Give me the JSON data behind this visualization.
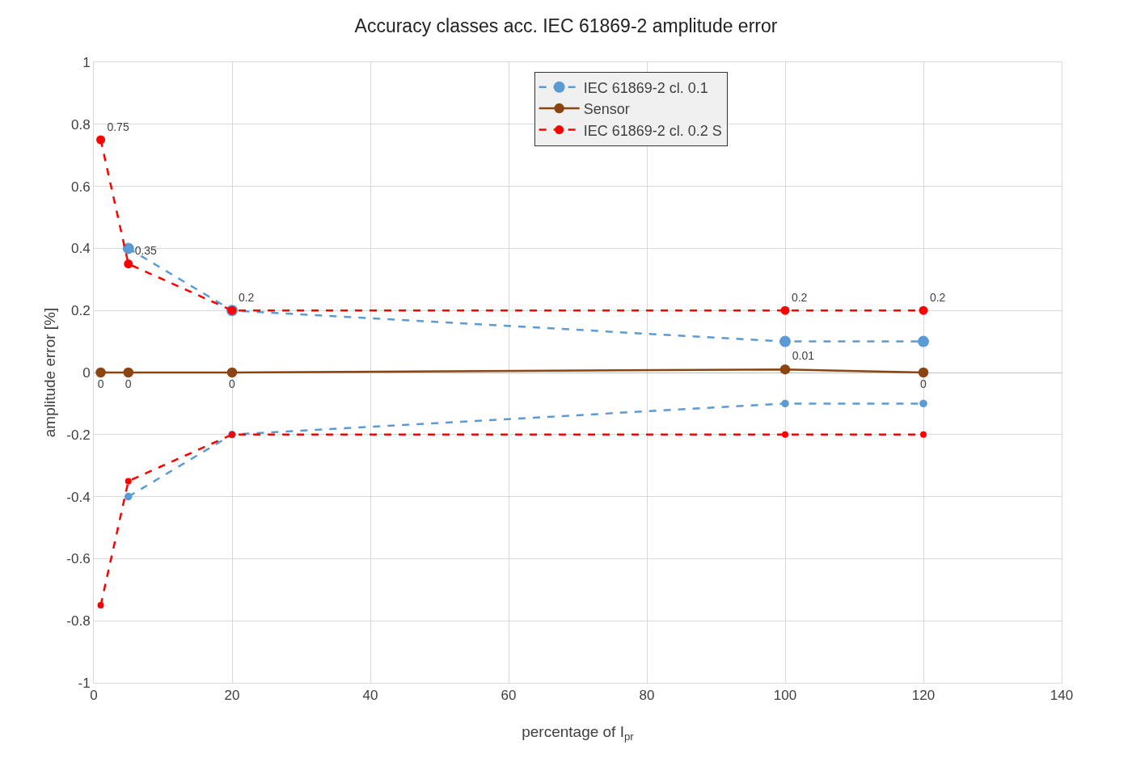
{
  "chart_data": {
    "type": "line",
    "title": "Accuracy classes acc. IEC 61869-2 amplitude error",
    "xlabel": "percentage of I$_{pr}$",
    "ylabel": "amplitude error [%]",
    "xlim": [
      0,
      140
    ],
    "xticks": [
      0,
      20,
      40,
      60,
      80,
      100,
      120,
      140
    ],
    "ylim": [
      -1,
      1
    ],
    "yticks": [
      -1,
      -0.8,
      -0.6,
      -0.4,
      -0.2,
      0,
      0.2,
      0.4,
      0.6,
      0.8,
      1
    ],
    "grid": true,
    "legend": "top right",
    "marker": "circle",
    "series": [
      {
        "name": "IEC 61869-2 cl. 0.1",
        "color": "#5b9bd5",
        "line_style": "dashed",
        "x": [
          5,
          20,
          100,
          120
        ],
        "values": [
          0.4,
          0.2,
          0.1,
          0.1
        ]
      },
      {
        "name": "Sensor",
        "color": "#8b4513",
        "line_style": "solid",
        "x": [
          1,
          5,
          20,
          100,
          120
        ],
        "values": [
          0,
          0,
          0,
          0.01,
          0
        ],
        "value_labels": [
          "0",
          "0",
          "0",
          "0.01",
          "0"
        ]
      },
      {
        "name": "IEC 61869-2 cl. 0.2 S",
        "color": "#ff0000",
        "line_style": "dashed",
        "x": [
          1,
          5,
          20,
          100,
          120
        ],
        "values": [
          0.75,
          0.35,
          0.2,
          0.2,
          0.2
        ],
        "value_labels": [
          "0.75",
          "0.35",
          "0.2",
          "0.2",
          "0.2"
        ]
      },
      {
        "color": "#5b9bd5",
        "line_style": "dashed",
        "x": [
          5,
          20,
          100,
          120
        ],
        "values": [
          -0.4,
          -0.2,
          -0.1,
          -0.1
        ]
      },
      {
        "color": "#ff0000",
        "line_style": "dashed",
        "x": [
          1,
          5,
          20,
          100,
          120
        ],
        "values": [
          -0.75,
          -0.35,
          -0.2,
          -0.2,
          -0.2
        ]
      }
    ]
  }
}
